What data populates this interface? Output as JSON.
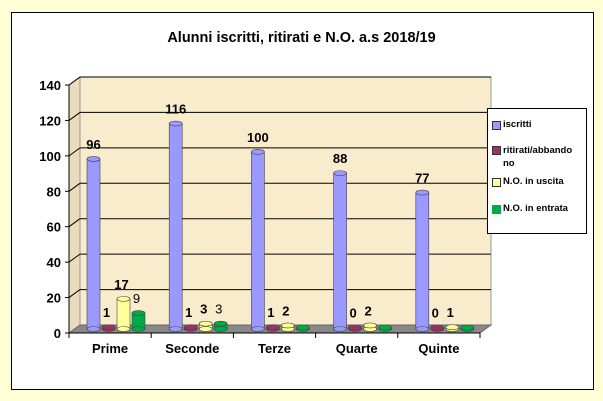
{
  "chart_data": {
    "type": "bar",
    "title": "Alunni  iscritti,  ritirati e N.O. a.s 2018/19",
    "categories": [
      "Prime",
      "Seconde",
      "Terze",
      "Quarte",
      "Quinte"
    ],
    "series": [
      {
        "name": "iscritti",
        "color": "#9999ff",
        "values": [
          96,
          116,
          100,
          88,
          77
        ]
      },
      {
        "name": "ritirati/abbandono",
        "color": "#993366",
        "values": [
          1,
          1,
          1,
          0,
          0
        ]
      },
      {
        "name": "N.O. in uscita",
        "color": "#ffff99",
        "values": [
          17,
          3,
          2,
          2,
          1
        ]
      },
      {
        "name": "N.O. in entrata",
        "color": "#00aa44",
        "values": [
          9,
          3,
          0,
          0,
          0
        ]
      }
    ],
    "data_labels": {
      "iscritti": [
        "96",
        "116",
        "100",
        "88",
        "77"
      ],
      "ritirati/abbandono": [
        "1",
        "1",
        "1",
        "0",
        "0"
      ],
      "N.O. in uscita": [
        "17",
        "3",
        "2",
        "2",
        "1"
      ],
      "N.O. in entrata": [
        "9",
        "3",
        "",
        "",
        ""
      ]
    },
    "xlabel": "",
    "ylabel": "",
    "ylim": [
      0,
      140
    ],
    "yticks": [
      0,
      20,
      40,
      60,
      80,
      100,
      120,
      140
    ],
    "grid": true,
    "legend_position": "right"
  },
  "legend": {
    "items": [
      {
        "label": "iscritti",
        "color": "#9999ff"
      },
      {
        "label": "ritirati/abbando no",
        "color": "#993366"
      },
      {
        "label": "N.O. in uscita",
        "color": "#ffff99"
      },
      {
        "label": "N.O. in entrata",
        "color": "#00aa44"
      }
    ]
  }
}
